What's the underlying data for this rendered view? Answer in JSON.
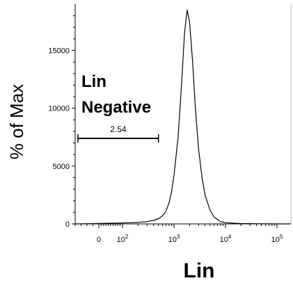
{
  "chart_data": {
    "type": "area",
    "title": "",
    "xlabel": "Lin",
    "ylabel": "% of Max",
    "xscale": "biexponential",
    "ylim": [
      0,
      19000
    ],
    "grid": false,
    "y_ticks": [
      {
        "value": 0,
        "label": "0"
      },
      {
        "value": 5000,
        "label": "5000"
      },
      {
        "value": 10000,
        "label": "10000"
      },
      {
        "value": 15000,
        "label": "15000"
      }
    ],
    "x_ticks": [
      {
        "value": 0,
        "label_base": "0",
        "label_exp": ""
      },
      {
        "value": 100,
        "label_base": "10",
        "label_exp": "2"
      },
      {
        "value": 1000,
        "label_base": "10",
        "label_exp": "3"
      },
      {
        "value": 10000,
        "label_base": "10",
        "label_exp": "4"
      },
      {
        "value": 100000,
        "label_base": "10",
        "label_exp": "5"
      }
    ],
    "series": [
      {
        "points": [
          [
            -400,
            0
          ],
          [
            -100,
            20
          ],
          [
            0,
            40
          ],
          [
            100,
            80
          ],
          [
            200,
            130
          ],
          [
            300,
            200
          ],
          [
            400,
            300
          ],
          [
            500,
            450
          ],
          [
            600,
            700
          ],
          [
            700,
            1100
          ],
          [
            800,
            1800
          ],
          [
            900,
            2800
          ],
          [
            1000,
            4200
          ],
          [
            1200,
            7500
          ],
          [
            1400,
            12000
          ],
          [
            1600,
            16500
          ],
          [
            1800,
            18500
          ],
          [
            2000,
            17500
          ],
          [
            2300,
            14000
          ],
          [
            2600,
            10000
          ],
          [
            3000,
            6500
          ],
          [
            3500,
            4000
          ],
          [
            4000,
            2500
          ],
          [
            5000,
            1200
          ],
          [
            6000,
            600
          ],
          [
            8000,
            200
          ],
          [
            10000,
            100
          ],
          [
            20000,
            30
          ],
          [
            50000,
            10
          ],
          [
            100000,
            0
          ],
          [
            200000,
            0
          ]
        ]
      }
    ],
    "gate": {
      "title_line1": "Lin",
      "title_line2": "Negative",
      "value": "2.54",
      "x_start": -400,
      "x_end": 500
    }
  }
}
